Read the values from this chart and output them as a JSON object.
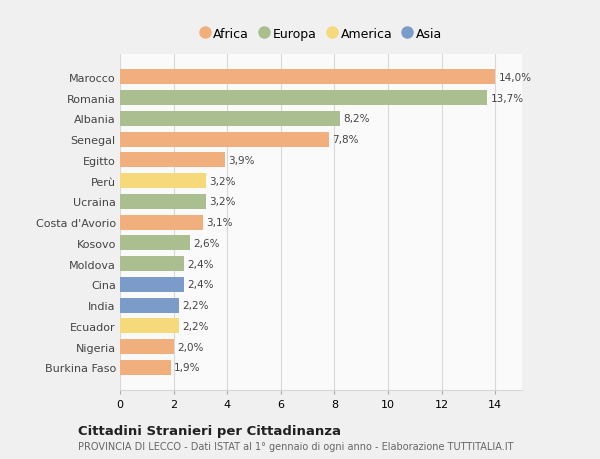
{
  "categories": [
    "Marocco",
    "Romania",
    "Albania",
    "Senegal",
    "Egitto",
    "Perù",
    "Ucraina",
    "Costa d'Avorio",
    "Kosovo",
    "Moldova",
    "Cina",
    "India",
    "Ecuador",
    "Nigeria",
    "Burkina Faso"
  ],
  "values": [
    14.0,
    13.7,
    8.2,
    7.8,
    3.9,
    3.2,
    3.2,
    3.1,
    2.6,
    2.4,
    2.4,
    2.2,
    2.2,
    2.0,
    1.9
  ],
  "colors": [
    "#F2AF7E",
    "#ABBE90",
    "#ABBE90",
    "#F2AF7E",
    "#F2AF7E",
    "#F5D97A",
    "#ABBE90",
    "#F2AF7E",
    "#ABBE90",
    "#ABBE90",
    "#7B9CC8",
    "#7B9CC8",
    "#F5D97A",
    "#F2AF7E",
    "#F2AF7E"
  ],
  "labels": [
    "14,0%",
    "13,7%",
    "8,2%",
    "7,8%",
    "3,9%",
    "3,2%",
    "3,2%",
    "3,1%",
    "2,6%",
    "2,4%",
    "2,4%",
    "2,2%",
    "2,2%",
    "2,0%",
    "1,9%"
  ],
  "legend": [
    {
      "label": "Africa",
      "color": "#F2AF7E"
    },
    {
      "label": "Europa",
      "color": "#ABBE90"
    },
    {
      "label": "America",
      "color": "#F5D97A"
    },
    {
      "label": "Asia",
      "color": "#7B9CC8"
    }
  ],
  "xlim": [
    0,
    15
  ],
  "xticks": [
    0,
    2,
    4,
    6,
    8,
    10,
    12,
    14
  ],
  "title": "Cittadini Stranieri per Cittadinanza",
  "subtitle": "PROVINCIA DI LECCO - Dati ISTAT al 1° gennaio di ogni anno - Elaborazione TUTTITALIA.IT",
  "background_color": "#f0f0f0",
  "plot_bg_color": "#fafafa",
  "grid_color": "#d8d8d8"
}
